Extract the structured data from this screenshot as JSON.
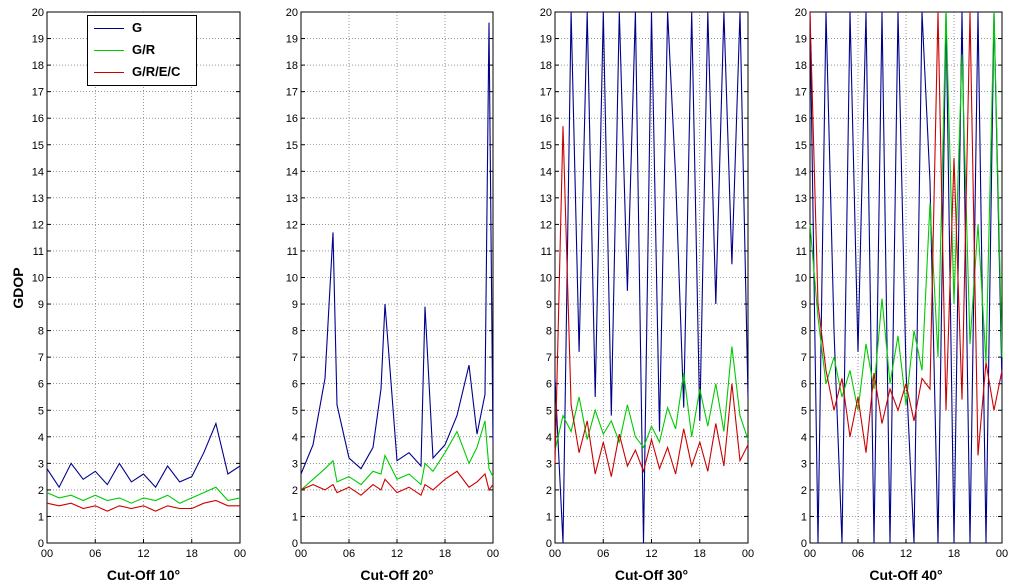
{
  "y_axis_label": "GDOP",
  "legend": [
    {
      "label": "G",
      "color": "#00008b"
    },
    {
      "label": "G/R",
      "color": "#00cc00"
    },
    {
      "label": "G/R/E/C",
      "color": "#cc0000"
    }
  ],
  "chart_data": [
    {
      "type": "line",
      "xlabel": "Cut-Off 10°",
      "ylabel": "GDOP",
      "xticks": [
        "00",
        "06",
        "12",
        "18",
        "00"
      ],
      "ylim": [
        0,
        20
      ],
      "grid": true,
      "legend_position": "top-left",
      "x": [
        0,
        1.5,
        3,
        4.5,
        6,
        7.5,
        9,
        10.5,
        12,
        13.5,
        15,
        16.5,
        18,
        19.5,
        21,
        22.5,
        24
      ],
      "series": [
        {
          "name": "G",
          "color": "#00008b",
          "values": [
            2.8,
            2.1,
            3.0,
            2.4,
            2.7,
            2.2,
            3.0,
            2.3,
            2.6,
            2.1,
            2.9,
            2.3,
            2.5,
            3.4,
            4.5,
            2.6,
            2.9
          ]
        },
        {
          "name": "G/R",
          "color": "#00cc00",
          "values": [
            1.9,
            1.7,
            1.8,
            1.6,
            1.8,
            1.6,
            1.7,
            1.5,
            1.7,
            1.6,
            1.8,
            1.5,
            1.7,
            1.9,
            2.1,
            1.6,
            1.7
          ]
        },
        {
          "name": "G/R/E/C",
          "color": "#cc0000",
          "values": [
            1.5,
            1.4,
            1.5,
            1.3,
            1.4,
            1.2,
            1.4,
            1.3,
            1.4,
            1.2,
            1.4,
            1.3,
            1.3,
            1.5,
            1.6,
            1.4,
            1.4
          ]
        }
      ]
    },
    {
      "type": "line",
      "xlabel": "Cut-Off 20°",
      "ylabel": "",
      "xticks": [
        "00",
        "06",
        "12",
        "18",
        "00"
      ],
      "ylim": [
        0,
        20
      ],
      "grid": true,
      "x": [
        0,
        1.5,
        3,
        4,
        4.5,
        6,
        7.5,
        9,
        10,
        10.5,
        12,
        13.5,
        15,
        15.5,
        16.5,
        18,
        19.5,
        21,
        22,
        23,
        23.5,
        24
      ],
      "series": [
        {
          "name": "G",
          "color": "#00008b",
          "values": [
            2.6,
            3.7,
            6.2,
            11.7,
            5.2,
            3.2,
            2.8,
            3.6,
            5.8,
            9.0,
            3.1,
            3.4,
            2.9,
            8.9,
            3.2,
            3.7,
            4.8,
            6.7,
            4.1,
            5.6,
            19.6,
            3.8
          ]
        },
        {
          "name": "G/R",
          "color": "#00cc00",
          "values": [
            2.0,
            2.4,
            2.8,
            3.1,
            2.3,
            2.5,
            2.2,
            2.7,
            2.6,
            3.3,
            2.4,
            2.6,
            2.2,
            3.0,
            2.7,
            3.4,
            4.2,
            3.0,
            3.6,
            4.6,
            2.8,
            2.5
          ]
        },
        {
          "name": "G/R/E/C",
          "color": "#cc0000",
          "values": [
            2.0,
            2.2,
            2.0,
            2.2,
            1.9,
            2.1,
            1.8,
            2.2,
            2.0,
            2.4,
            1.9,
            2.1,
            1.8,
            2.2,
            2.0,
            2.4,
            2.7,
            2.1,
            2.3,
            2.6,
            2.0,
            2.2
          ]
        }
      ]
    },
    {
      "type": "line",
      "xlabel": "Cut-Off 30°",
      "ylabel": "",
      "xticks": [
        "00",
        "06",
        "12",
        "18",
        "00"
      ],
      "ylim": [
        0,
        20
      ],
      "grid": true,
      "x": [
        0,
        1,
        2,
        3,
        4,
        5,
        6,
        7,
        8,
        9,
        10,
        11,
        12,
        13,
        14,
        15,
        16,
        17,
        18,
        19,
        20,
        21,
        22,
        23,
        24
      ],
      "series": [
        {
          "name": "G",
          "color": "#00008b",
          "values": [
            6.2,
            0,
            20,
            7.2,
            20,
            5.5,
            20,
            4.8,
            20,
            9.5,
            20,
            0,
            20,
            4.2,
            20,
            13.8,
            5.1,
            20,
            4.6,
            20,
            9.0,
            20,
            10.5,
            20,
            5.5
          ]
        },
        {
          "name": "G/R",
          "color": "#00cc00",
          "values": [
            3.5,
            4.8,
            4.2,
            5.5,
            3.9,
            5.0,
            4.1,
            4.6,
            3.8,
            5.2,
            4.0,
            3.6,
            4.4,
            3.8,
            5.1,
            4.3,
            6.4,
            4.0,
            5.8,
            4.4,
            6.0,
            4.2,
            7.4,
            4.8,
            3.9
          ]
        },
        {
          "name": "G/R/E/C",
          "color": "#cc0000",
          "values": [
            3.0,
            15.7,
            5.2,
            3.4,
            4.6,
            2.6,
            3.8,
            2.5,
            4.1,
            2.9,
            3.5,
            2.7,
            3.9,
            2.8,
            3.6,
            2.6,
            4.3,
            2.9,
            3.8,
            2.7,
            4.5,
            2.9,
            6.0,
            3.1,
            3.7
          ]
        }
      ]
    },
    {
      "type": "line",
      "xlabel": "Cut-Off 40°",
      "ylabel": "",
      "xticks": [
        "00",
        "06",
        "12",
        "18",
        "00"
      ],
      "ylim": [
        0,
        20
      ],
      "grid": true,
      "x": [
        0,
        1,
        2,
        3,
        4,
        5,
        6,
        7,
        8,
        9,
        10,
        11,
        12,
        13,
        14,
        15,
        16,
        17,
        18,
        19,
        20,
        21,
        22,
        23,
        24
      ],
      "series": [
        {
          "name": "G",
          "color": "#00008b",
          "values": [
            20,
            0,
            20,
            8.0,
            0,
            20,
            7.2,
            20,
            0,
            20,
            0,
            20,
            6.5,
            0,
            20,
            13.6,
            0,
            20,
            0,
            20,
            0,
            20,
            0,
            20,
            6.0
          ]
        },
        {
          "name": "G/R",
          "color": "#00cc00",
          "values": [
            12.0,
            8.5,
            6.0,
            7.0,
            5.5,
            6.5,
            5.0,
            7.5,
            5.8,
            9.2,
            6.0,
            7.8,
            5.2,
            8.0,
            6.5,
            12.8,
            7.0,
            20,
            9.0,
            18.4,
            7.5,
            12.0,
            6.8,
            20,
            7.0
          ]
        },
        {
          "name": "G/R/E/C",
          "color": "#cc0000",
          "values": [
            20,
            9.0,
            6.5,
            5.0,
            6.2,
            4.0,
            5.5,
            3.4,
            6.4,
            4.5,
            5.8,
            5.0,
            6.0,
            4.6,
            6.2,
            5.8,
            20,
            5.0,
            14.5,
            5.4,
            20,
            3.3,
            6.8,
            5.0,
            6.5
          ]
        }
      ]
    }
  ]
}
